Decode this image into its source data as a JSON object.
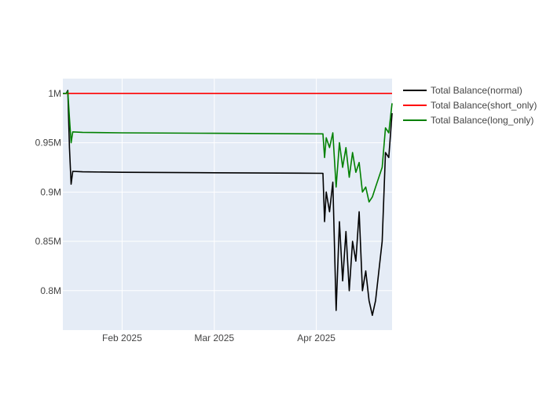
{
  "chart_data": {
    "type": "line",
    "title": "",
    "xlabel": "",
    "ylabel": "",
    "grid": true,
    "legend_position": "top-right",
    "plot_background": "#e5ecf6",
    "xlim": [
      "2025-01-14",
      "2025-04-24"
    ],
    "ylim": [
      760000,
      1015000
    ],
    "x_ticks": [
      {
        "value": "2025-02-01",
        "label": "Feb 2025"
      },
      {
        "value": "2025-03-01",
        "label": "Mar 2025"
      },
      {
        "value": "2025-04-01",
        "label": "Apr 2025"
      }
    ],
    "y_ticks": [
      {
        "value": 800000,
        "label": "0.8M"
      },
      {
        "value": 850000,
        "label": "0.85M"
      },
      {
        "value": 900000,
        "label": "0.9M"
      },
      {
        "value": 950000,
        "label": "0.95M"
      },
      {
        "value": 1000000,
        "label": "1M"
      }
    ],
    "series": [
      {
        "name": "Total Balance(normal)",
        "color": "#000000",
        "x": [
          "2025-01-14",
          "2025-01-15",
          "2025-01-15 12:00",
          "2025-01-16",
          "2025-01-16 12:00",
          "2025-01-17",
          "2025-01-20",
          "2025-02-01",
          "2025-03-01",
          "2025-04-03",
          "2025-04-03 12:00",
          "2025-04-04",
          "2025-04-05",
          "2025-04-06",
          "2025-04-07",
          "2025-04-08",
          "2025-04-09",
          "2025-04-10",
          "2025-04-11",
          "2025-04-12",
          "2025-04-13",
          "2025-04-14",
          "2025-04-15",
          "2025-04-16",
          "2025-04-17",
          "2025-04-18",
          "2025-04-19",
          "2025-04-20",
          "2025-04-21",
          "2025-04-22",
          "2025-04-23",
          "2025-04-24"
        ],
        "y": [
          1000000,
          1000000,
          1003000,
          945000,
          908000,
          921000,
          920500,
          920000,
          919500,
          919000,
          870000,
          900000,
          880000,
          910000,
          780000,
          870000,
          810000,
          860000,
          800000,
          850000,
          830000,
          880000,
          800000,
          820000,
          790000,
          775000,
          790000,
          820000,
          850000,
          940000,
          935000,
          980000
        ]
      },
      {
        "name": "Total Balance(short_only)",
        "color": "#ff0000",
        "x": [
          "2025-01-14",
          "2025-04-24"
        ],
        "y": [
          1000000,
          1000000
        ]
      },
      {
        "name": "Total Balance(long_only)",
        "color": "#008000",
        "x": [
          "2025-01-14",
          "2025-01-15",
          "2025-01-15 12:00",
          "2025-01-16",
          "2025-01-16 12:00",
          "2025-01-17",
          "2025-01-20",
          "2025-02-01",
          "2025-03-01",
          "2025-04-03",
          "2025-04-03 12:00",
          "2025-04-04",
          "2025-04-05",
          "2025-04-06",
          "2025-04-07",
          "2025-04-08",
          "2025-04-09",
          "2025-04-10",
          "2025-04-11",
          "2025-04-12",
          "2025-04-13",
          "2025-04-14",
          "2025-04-15",
          "2025-04-16",
          "2025-04-17",
          "2025-04-18",
          "2025-04-19",
          "2025-04-20",
          "2025-04-21",
          "2025-04-22",
          "2025-04-23",
          "2025-04-24"
        ],
        "y": [
          1000000,
          1000000,
          1002000,
          975000,
          950000,
          961000,
          960500,
          960000,
          959500,
          959000,
          935000,
          955000,
          945000,
          960000,
          905000,
          950000,
          925000,
          945000,
          915000,
          940000,
          920000,
          930000,
          900000,
          905000,
          890000,
          895000,
          905000,
          915000,
          925000,
          965000,
          960000,
          990000
        ]
      }
    ]
  }
}
